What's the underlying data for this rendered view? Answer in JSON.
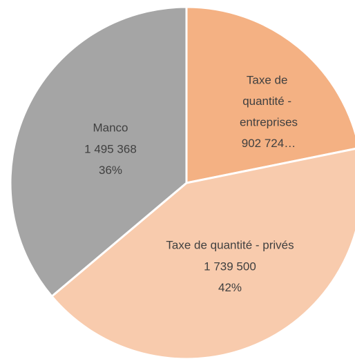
{
  "chart_data": {
    "type": "pie",
    "categories": [
      "Taxe de quantité - entreprises",
      "Taxe de quantité - privés",
      "Manco"
    ],
    "values": [
      902724,
      1739500,
      1495368
    ],
    "value_labels": [
      "902 724…",
      "1 739 500",
      "1 495 368"
    ],
    "percent_labels": [
      null,
      "42%",
      "36%"
    ],
    "colors": [
      "#f4b183",
      "#f8cbad",
      "#a5a5a5"
    ]
  }
}
